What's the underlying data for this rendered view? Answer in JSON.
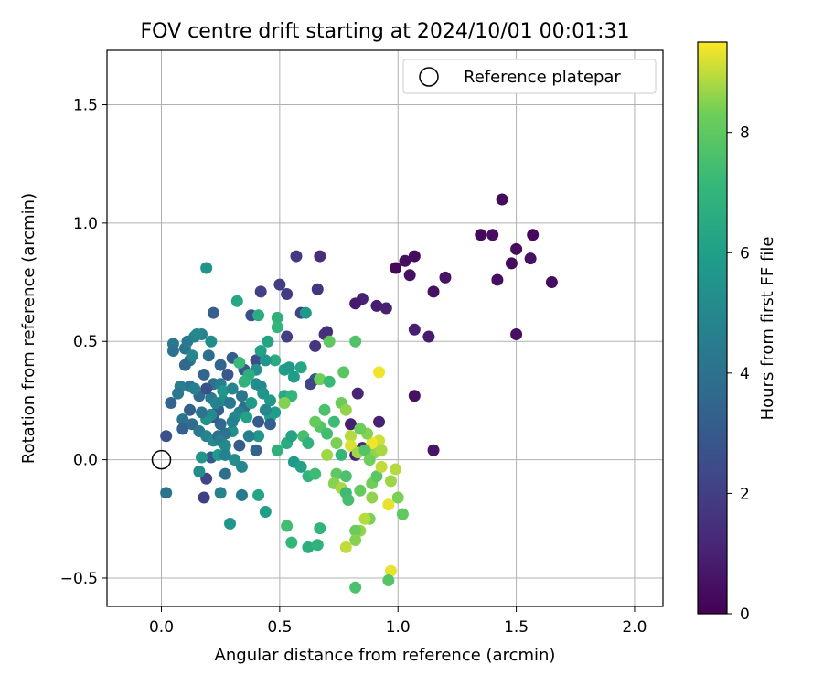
{
  "chart_data": {
    "type": "scatter",
    "title": "FOV centre drift starting at 2024/10/01 00:01:31",
    "xlabel": "Angular distance from reference (arcmin)",
    "ylabel": "Rotation from reference (arcmin)",
    "xlim": [
      -0.23,
      2.12
    ],
    "ylim": [
      -0.62,
      1.73
    ],
    "xticks": [
      0.0,
      0.5,
      1.0,
      1.5,
      2.0
    ],
    "xtick_labels": [
      "0.0",
      "0.5",
      "1.0",
      "1.5",
      "2.0"
    ],
    "yticks": [
      -0.5,
      0.0,
      0.5,
      1.0,
      1.5
    ],
    "ytick_labels": [
      "−0.5",
      "0.0",
      "0.5",
      "1.0",
      "1.5"
    ],
    "grid": true,
    "legend": {
      "placement": "top-right",
      "entries": [
        {
          "label": "Reference platepar",
          "marker": "open-circle",
          "x": 0.0,
          "y": 0.0
        }
      ]
    },
    "colorbar": {
      "label": "Hours from first FF file",
      "colormap": "viridis",
      "range": [
        0,
        9.5
      ],
      "ticks": [
        0,
        2,
        4,
        6,
        8
      ],
      "tick_labels": [
        "0",
        "2",
        "4",
        "6",
        "8"
      ]
    },
    "points": [
      {
        "x": 1.44,
        "y": 1.1,
        "c": 0.3
      },
      {
        "x": 1.35,
        "y": 0.95,
        "c": 0.2
      },
      {
        "x": 1.4,
        "y": 0.95,
        "c": 0.4
      },
      {
        "x": 1.57,
        "y": 0.95,
        "c": 0.2
      },
      {
        "x": 1.5,
        "y": 0.89,
        "c": 0.3
      },
      {
        "x": 1.56,
        "y": 0.85,
        "c": 0.5
      },
      {
        "x": 1.48,
        "y": 0.83,
        "c": 0.2
      },
      {
        "x": 1.42,
        "y": 0.76,
        "c": 0.4
      },
      {
        "x": 1.65,
        "y": 0.75,
        "c": 0.3
      },
      {
        "x": 1.5,
        "y": 0.53,
        "c": 0.5
      },
      {
        "x": 1.2,
        "y": 0.77,
        "c": 0.6
      },
      {
        "x": 1.15,
        "y": 0.71,
        "c": 0.5
      },
      {
        "x": 1.07,
        "y": 0.86,
        "c": 0.3
      },
      {
        "x": 1.03,
        "y": 0.84,
        "c": 0.4
      },
      {
        "x": 0.99,
        "y": 0.81,
        "c": 0.2
      },
      {
        "x": 1.05,
        "y": 0.78,
        "c": 0.5
      },
      {
        "x": 0.95,
        "y": 0.64,
        "c": 1.0
      },
      {
        "x": 0.91,
        "y": 0.65,
        "c": 0.9
      },
      {
        "x": 0.85,
        "y": 0.68,
        "c": 1.0
      },
      {
        "x": 0.82,
        "y": 0.66,
        "c": 0.8
      },
      {
        "x": 1.07,
        "y": 0.55,
        "c": 0.9
      },
      {
        "x": 1.13,
        "y": 0.52,
        "c": 0.8
      },
      {
        "x": 1.07,
        "y": 0.27,
        "c": 0.5
      },
      {
        "x": 1.15,
        "y": 0.04,
        "c": 0.6
      },
      {
        "x": 0.92,
        "y": 0.16,
        "c": 1.0
      },
      {
        "x": 0.83,
        "y": 0.28,
        "c": 1.1
      },
      {
        "x": 0.8,
        "y": 0.15,
        "c": 0.9
      },
      {
        "x": 0.85,
        "y": 0.05,
        "c": 1.2
      },
      {
        "x": 0.82,
        "y": 0.02,
        "c": 1.0
      },
      {
        "x": 0.67,
        "y": 0.86,
        "c": 1.4
      },
      {
        "x": 0.57,
        "y": 0.86,
        "c": 1.8
      },
      {
        "x": 0.5,
        "y": 0.74,
        "c": 2.0
      },
      {
        "x": 0.53,
        "y": 0.7,
        "c": 1.9
      },
      {
        "x": 0.42,
        "y": 0.71,
        "c": 2.1
      },
      {
        "x": 0.66,
        "y": 0.72,
        "c": 1.6
      },
      {
        "x": 0.69,
        "y": 0.53,
        "c": 1.5
      },
      {
        "x": 0.7,
        "y": 0.54,
        "c": 1.4
      },
      {
        "x": 0.65,
        "y": 0.48,
        "c": 1.6
      },
      {
        "x": 0.53,
        "y": 0.52,
        "c": 2.0
      },
      {
        "x": 0.59,
        "y": 0.62,
        "c": 2.2
      },
      {
        "x": 0.38,
        "y": 0.61,
        "c": 2.5
      },
      {
        "x": 0.22,
        "y": 0.62,
        "c": 3.2
      },
      {
        "x": 0.65,
        "y": 0.34,
        "c": 2.8
      },
      {
        "x": 0.63,
        "y": 0.32,
        "c": 2.2
      },
      {
        "x": 0.4,
        "y": 0.42,
        "c": 2.5
      },
      {
        "x": 0.35,
        "y": 0.38,
        "c": 3.0
      },
      {
        "x": 0.3,
        "y": 0.43,
        "c": 3.1
      },
      {
        "x": 0.25,
        "y": 0.4,
        "c": 3.4
      },
      {
        "x": 0.28,
        "y": 0.36,
        "c": 2.9
      },
      {
        "x": 0.2,
        "y": 0.44,
        "c": 3.8
      },
      {
        "x": 0.18,
        "y": 0.36,
        "c": 3.5
      },
      {
        "x": 0.12,
        "y": 0.42,
        "c": 3.9
      },
      {
        "x": 0.1,
        "y": 0.47,
        "c": 4.1
      },
      {
        "x": 0.05,
        "y": 0.49,
        "c": 4.3
      },
      {
        "x": 0.05,
        "y": 0.46,
        "c": 4.0
      },
      {
        "x": 0.11,
        "y": 0.5,
        "c": 4.4
      },
      {
        "x": 0.14,
        "y": 0.52,
        "c": 4.6
      },
      {
        "x": 0.17,
        "y": 0.53,
        "c": 4.8
      },
      {
        "x": 0.15,
        "y": 0.53,
        "c": 5.0
      },
      {
        "x": 0.21,
        "y": 0.5,
        "c": 5.2
      },
      {
        "x": 0.19,
        "y": 0.81,
        "c": 5.5
      },
      {
        "x": 0.32,
        "y": 0.67,
        "c": 6.3
      },
      {
        "x": 0.41,
        "y": 0.61,
        "c": 6.6
      },
      {
        "x": 0.49,
        "y": 0.6,
        "c": 6.8
      },
      {
        "x": 0.49,
        "y": 0.56,
        "c": 7.0
      },
      {
        "x": 0.45,
        "y": 0.5,
        "c": 6.2
      },
      {
        "x": 0.48,
        "y": 0.42,
        "c": 6.5
      },
      {
        "x": 0.52,
        "y": 0.38,
        "c": 6.0
      },
      {
        "x": 0.54,
        "y": 0.39,
        "c": 5.8
      },
      {
        "x": 0.59,
        "y": 0.39,
        "c": 6.3
      },
      {
        "x": 0.56,
        "y": 0.35,
        "c": 5.9
      },
      {
        "x": 0.61,
        "y": 0.62,
        "c": 5.7
      },
      {
        "x": 0.42,
        "y": 0.46,
        "c": 6.1
      },
      {
        "x": 0.44,
        "y": 0.42,
        "c": 5.6
      },
      {
        "x": 0.4,
        "y": 0.38,
        "c": 5.4
      },
      {
        "x": 0.37,
        "y": 0.36,
        "c": 6.7
      },
      {
        "x": 0.35,
        "y": 0.33,
        "c": 6.9
      },
      {
        "x": 0.33,
        "y": 0.41,
        "c": 7.2
      },
      {
        "x": 0.4,
        "y": 0.32,
        "c": 5.3
      },
      {
        "x": 0.42,
        "y": 0.31,
        "c": 5.1
      },
      {
        "x": 0.43,
        "y": 0.28,
        "c": 5.5
      },
      {
        "x": 0.46,
        "y": 0.25,
        "c": 5.7
      },
      {
        "x": 0.48,
        "y": 0.2,
        "c": 5.9
      },
      {
        "x": 0.52,
        "y": 0.27,
        "c": 6.4
      },
      {
        "x": 0.55,
        "y": 0.27,
        "c": 7.0
      },
      {
        "x": 0.52,
        "y": 0.24,
        "c": 7.4
      },
      {
        "x": 0.46,
        "y": 0.18,
        "c": 6.0
      },
      {
        "x": 0.44,
        "y": 0.21,
        "c": 4.9
      },
      {
        "x": 0.46,
        "y": 0.15,
        "c": 3.2
      },
      {
        "x": 0.41,
        "y": 0.16,
        "c": 3.0
      },
      {
        "x": 0.4,
        "y": 0.04,
        "c": 3.4
      },
      {
        "x": 0.35,
        "y": 0.22,
        "c": 3.8
      },
      {
        "x": 0.34,
        "y": 0.27,
        "c": 4.2
      },
      {
        "x": 0.33,
        "y": 0.2,
        "c": 4.6
      },
      {
        "x": 0.31,
        "y": 0.18,
        "c": 5.0
      },
      {
        "x": 0.3,
        "y": 0.12,
        "c": 5.3
      },
      {
        "x": 0.3,
        "y": 0.16,
        "c": 4.7
      },
      {
        "x": 0.27,
        "y": 0.11,
        "c": 4.1
      },
      {
        "x": 0.25,
        "y": 0.15,
        "c": 3.6
      },
      {
        "x": 0.24,
        "y": 0.21,
        "c": 3.2
      },
      {
        "x": 0.22,
        "y": 0.18,
        "c": 3.0
      },
      {
        "x": 0.21,
        "y": 0.26,
        "c": 4.4
      },
      {
        "x": 0.22,
        "y": 0.32,
        "c": 3.9
      },
      {
        "x": 0.25,
        "y": 0.32,
        "c": 4.5
      },
      {
        "x": 0.26,
        "y": 0.25,
        "c": 5.2
      },
      {
        "x": 0.26,
        "y": 0.29,
        "c": 5.6
      },
      {
        "x": 0.3,
        "y": 0.3,
        "c": 4.9
      },
      {
        "x": 0.29,
        "y": 0.24,
        "c": 4.3
      },
      {
        "x": 0.23,
        "y": 0.24,
        "c": 4.8
      },
      {
        "x": 0.21,
        "y": 0.19,
        "c": 5.1
      },
      {
        "x": 0.19,
        "y": 0.17,
        "c": 5.4
      },
      {
        "x": 0.17,
        "y": 0.2,
        "c": 4.2
      },
      {
        "x": 0.16,
        "y": 0.27,
        "c": 3.7
      },
      {
        "x": 0.12,
        "y": 0.31,
        "c": 4.0
      },
      {
        "x": 0.08,
        "y": 0.31,
        "c": 4.6
      },
      {
        "x": 0.07,
        "y": 0.28,
        "c": 4.3
      },
      {
        "x": 0.04,
        "y": 0.24,
        "c": 3.5
      },
      {
        "x": 0.12,
        "y": 0.21,
        "c": 3.2
      },
      {
        "x": 0.09,
        "y": 0.17,
        "c": 4.1
      },
      {
        "x": 0.09,
        "y": 0.13,
        "c": 3.3
      },
      {
        "x": 0.13,
        "y": 0.15,
        "c": 3.8
      },
      {
        "x": 0.16,
        "y": 0.12,
        "c": 4.4
      },
      {
        "x": 0.19,
        "y": 0.1,
        "c": 4.8
      },
      {
        "x": 0.22,
        "y": 0.08,
        "c": 5.1
      },
      {
        "x": 0.24,
        "y": 0.1,
        "c": 3.9
      },
      {
        "x": 0.25,
        "y": 0.08,
        "c": 4.5
      },
      {
        "x": 0.27,
        "y": 0.06,
        "c": 5.0
      },
      {
        "x": 0.21,
        "y": 0.01,
        "c": 2.9
      },
      {
        "x": 0.17,
        "y": 0.01,
        "c": 5.5
      },
      {
        "x": 0.24,
        "y": 0.02,
        "c": 5.8
      },
      {
        "x": 0.27,
        "y": 0.02,
        "c": 4.7
      },
      {
        "x": 0.31,
        "y": 0.0,
        "c": 5.2
      },
      {
        "x": 0.34,
        "y": -0.03,
        "c": 4.9
      },
      {
        "x": 0.27,
        "y": -0.06,
        "c": 3.9
      },
      {
        "x": 0.19,
        "y": -0.08,
        "c": 2.2
      },
      {
        "x": 0.16,
        "y": -0.05,
        "c": 5.2
      },
      {
        "x": 0.18,
        "y": -0.16,
        "c": 2.0
      },
      {
        "x": 0.25,
        "y": -0.14,
        "c": 4.8
      },
      {
        "x": 0.34,
        "y": -0.15,
        "c": 4.4
      },
      {
        "x": 0.29,
        "y": -0.27,
        "c": 5.6
      },
      {
        "x": 0.02,
        "y": -0.14,
        "c": 4.1
      },
      {
        "x": 0.02,
        "y": 0.1,
        "c": 2.6
      },
      {
        "x": 0.33,
        "y": 0.06,
        "c": 3.1
      },
      {
        "x": 0.41,
        "y": -0.15,
        "c": 6.2
      },
      {
        "x": 0.44,
        "y": -0.22,
        "c": 6.0
      },
      {
        "x": 0.49,
        "y": 0.04,
        "c": 6.8
      },
      {
        "x": 0.53,
        "y": 0.07,
        "c": 6.5
      },
      {
        "x": 0.55,
        "y": 0.1,
        "c": 6.2
      },
      {
        "x": 0.56,
        "y": -0.01,
        "c": 5.8
      },
      {
        "x": 0.59,
        "y": -0.03,
        "c": 6.1
      },
      {
        "x": 0.62,
        "y": -0.07,
        "c": 7.0
      },
      {
        "x": 0.65,
        "y": -0.06,
        "c": 7.3
      },
      {
        "x": 0.6,
        "y": 0.1,
        "c": 7.5
      },
      {
        "x": 0.62,
        "y": 0.07,
        "c": 6.9
      },
      {
        "x": 0.67,
        "y": 0.14,
        "c": 7.8
      },
      {
        "x": 0.7,
        "y": 0.11,
        "c": 7.4
      },
      {
        "x": 0.65,
        "y": 0.16,
        "c": 8.1
      },
      {
        "x": 0.67,
        "y": 0.34,
        "c": 8.3
      },
      {
        "x": 0.71,
        "y": 0.33,
        "c": 7.2
      },
      {
        "x": 0.69,
        "y": 0.21,
        "c": 7.6
      },
      {
        "x": 0.71,
        "y": 0.5,
        "c": 8.0
      },
      {
        "x": 0.82,
        "y": 0.5,
        "c": 7.7
      },
      {
        "x": 0.77,
        "y": 0.37,
        "c": 7.9
      },
      {
        "x": 0.76,
        "y": 0.24,
        "c": 8.2
      },
      {
        "x": 0.78,
        "y": 0.21,
        "c": 8.6
      },
      {
        "x": 0.73,
        "y": 0.16,
        "c": 7.3
      },
      {
        "x": 0.74,
        "y": 0.07,
        "c": 8.4
      },
      {
        "x": 0.76,
        "y": 0.02,
        "c": 7.1
      },
      {
        "x": 0.7,
        "y": 0.02,
        "c": 8.7
      },
      {
        "x": 0.74,
        "y": -0.06,
        "c": 8.0
      },
      {
        "x": 0.78,
        "y": -0.07,
        "c": 7.6
      },
      {
        "x": 0.73,
        "y": -0.1,
        "c": 8.5
      },
      {
        "x": 0.76,
        "y": -0.12,
        "c": 8.8
      },
      {
        "x": 0.78,
        "y": -0.14,
        "c": 7.3
      },
      {
        "x": 0.79,
        "y": -0.17,
        "c": 7.5
      },
      {
        "x": 0.84,
        "y": -0.13,
        "c": 8.1
      },
      {
        "x": 0.89,
        "y": -0.1,
        "c": 8.3
      },
      {
        "x": 0.89,
        "y": -0.16,
        "c": 8.6
      },
      {
        "x": 0.91,
        "y": -0.07,
        "c": 7.9
      },
      {
        "x": 0.97,
        "y": -0.09,
        "c": 8.7
      },
      {
        "x": 0.99,
        "y": -0.04,
        "c": 8.9
      },
      {
        "x": 1.0,
        "y": -0.16,
        "c": 8.4
      },
      {
        "x": 1.02,
        "y": -0.23,
        "c": 8.0
      },
      {
        "x": 0.96,
        "y": -0.19,
        "c": 9.3
      },
      {
        "x": 0.93,
        "y": -0.03,
        "c": 9.0
      },
      {
        "x": 0.9,
        "y": 0.03,
        "c": 8.6
      },
      {
        "x": 0.92,
        "y": 0.08,
        "c": 9.1
      },
      {
        "x": 0.93,
        "y": 0.04,
        "c": 8.8
      },
      {
        "x": 0.89,
        "y": 0.07,
        "c": 9.4
      },
      {
        "x": 0.87,
        "y": 0.11,
        "c": 8.5
      },
      {
        "x": 0.84,
        "y": 0.13,
        "c": 8.2
      },
      {
        "x": 0.8,
        "y": 0.1,
        "c": 8.9
      },
      {
        "x": 0.8,
        "y": 0.06,
        "c": 9.2
      },
      {
        "x": 0.83,
        "y": 0.03,
        "c": 8.7
      },
      {
        "x": 0.86,
        "y": 0.04,
        "c": 7.8
      },
      {
        "x": 0.88,
        "y": 0.0,
        "c": 8.3
      },
      {
        "x": 0.88,
        "y": -0.25,
        "c": 8.4
      },
      {
        "x": 0.86,
        "y": -0.25,
        "c": 8.9
      },
      {
        "x": 0.84,
        "y": -0.3,
        "c": 8.6
      },
      {
        "x": 0.82,
        "y": -0.3,
        "c": 8.2
      },
      {
        "x": 0.82,
        "y": -0.34,
        "c": 8.5
      },
      {
        "x": 0.78,
        "y": -0.37,
        "c": 9.0
      },
      {
        "x": 0.82,
        "y": -0.54,
        "c": 7.6
      },
      {
        "x": 0.97,
        "y": -0.47,
        "c": 9.3
      },
      {
        "x": 0.96,
        "y": -0.51,
        "c": 7.8
      },
      {
        "x": 0.92,
        "y": 0.37,
        "c": 9.4
      },
      {
        "x": 0.52,
        "y": 0.24,
        "c": 8.5
      },
      {
        "x": 0.62,
        "y": -0.37,
        "c": 6.7
      },
      {
        "x": 0.66,
        "y": -0.36,
        "c": 6.9
      },
      {
        "x": 0.55,
        "y": -0.35,
        "c": 7.1
      },
      {
        "x": 0.53,
        "y": -0.28,
        "c": 7.4
      },
      {
        "x": 0.67,
        "y": -0.29,
        "c": 7.0
      },
      {
        "x": 0.41,
        "y": 0.1,
        "c": 5.6
      },
      {
        "x": 0.36,
        "y": 0.18,
        "c": 6.1
      },
      {
        "x": 0.38,
        "y": 0.24,
        "c": 5.8
      },
      {
        "x": 0.37,
        "y": 0.1,
        "c": 4.6
      },
      {
        "x": 0.14,
        "y": 0.3,
        "c": 4.7
      },
      {
        "x": 0.1,
        "y": 0.4,
        "c": 3.6
      },
      {
        "x": 0.13,
        "y": 0.44,
        "c": 4.9
      },
      {
        "x": 0.19,
        "y": 0.3,
        "c": 2.7
      }
    ]
  }
}
